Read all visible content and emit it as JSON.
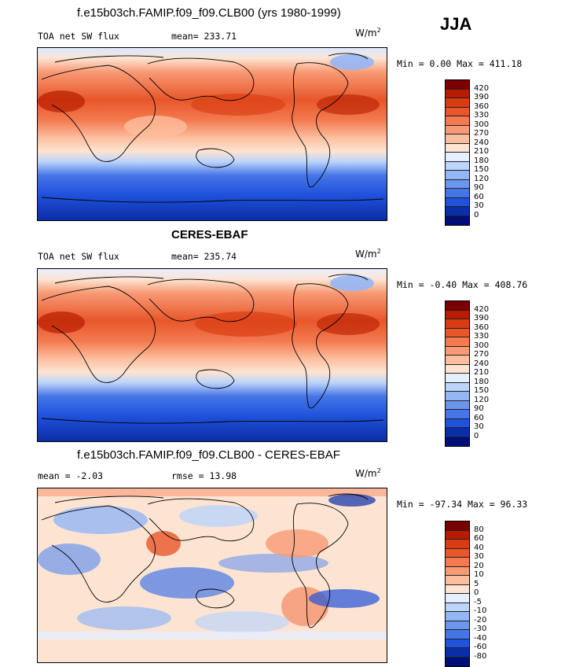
{
  "season": "JJA",
  "panels": [
    {
      "title": "f.e15b03ch.FAMIP.f09_f09.CLB00 (yrs 1980-1999)",
      "left_label": "TOA net SW flux",
      "right_label": "mean= 233.71",
      "units_base": "W/m",
      "units_exp": "2",
      "minmax": "Min =   0.00 Max = 411.18",
      "colorbar": {
        "labels": [
          "420",
          "390",
          "360",
          "330",
          "300",
          "270",
          "240",
          "210",
          "180",
          "150",
          "120",
          "90",
          "60",
          "30",
          "0"
        ],
        "colors": [
          "#7a0000",
          "#b81c00",
          "#d83c12",
          "#e8562a",
          "#f47a50",
          "#f89a74",
          "#fcbe9e",
          "#fde4d2",
          "#e6efff",
          "#bcd4fa",
          "#93b6f5",
          "#6c96ee",
          "#4676e6",
          "#2052dc",
          "#0a2ea8",
          "#000f78"
        ]
      }
    },
    {
      "title": "CERES-EBAF",
      "left_label": "TOA net SW flux",
      "right_label": "mean= 235.74",
      "units_base": "W/m",
      "units_exp": "2",
      "minmax": "Min =  -0.40 Max = 408.76",
      "colorbar": {
        "labels": [
          "420",
          "390",
          "360",
          "330",
          "300",
          "270",
          "240",
          "210",
          "180",
          "150",
          "120",
          "90",
          "60",
          "30",
          "0"
        ],
        "colors": [
          "#7a0000",
          "#b81c00",
          "#d83c12",
          "#e8562a",
          "#f47a50",
          "#f89a74",
          "#fcbe9e",
          "#fde4d2",
          "#e6efff",
          "#bcd4fa",
          "#93b6f5",
          "#6c96ee",
          "#4676e6",
          "#2052dc",
          "#0a2ea8",
          "#000f78"
        ]
      }
    },
    {
      "title": "f.e15b03ch.FAMIP.f09_f09.CLB00 - CERES-EBAF",
      "left_label": "mean =   -2.03",
      "right_label": "rmse =   13.98",
      "units_base": "W/m",
      "units_exp": "2",
      "minmax": "Min = -97.34 Max =  96.33",
      "colorbar": {
        "labels": [
          "80",
          "60",
          "40",
          "30",
          "20",
          "10",
          "5",
          "0",
          "-5",
          "-10",
          "-20",
          "-30",
          "-40",
          "-60",
          "-80"
        ],
        "colors": [
          "#7a0000",
          "#b81c00",
          "#d83c12",
          "#e8562a",
          "#f47a50",
          "#f89a74",
          "#fcbe9e",
          "#fde4d2",
          "#e6efff",
          "#bcd4fa",
          "#93b6f5",
          "#6c96ee",
          "#4676e6",
          "#2052dc",
          "#0a2ea8",
          "#000f78"
        ]
      }
    }
  ]
}
